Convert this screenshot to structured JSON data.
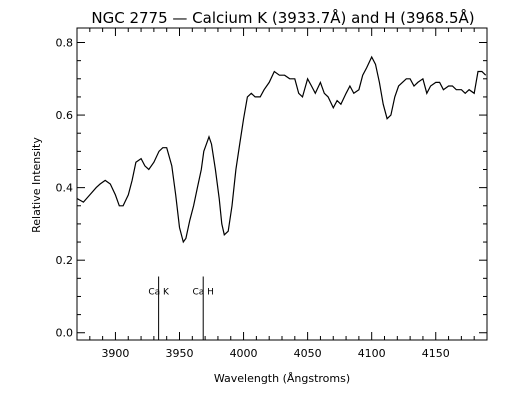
{
  "chart_data": {
    "type": "line",
    "title": "NGC 2775 — Calcium K (3933.7Å) and H (3968.5Å)",
    "xlabel": "Wavelength (Ångstroms)",
    "ylabel": "Relative Intensity",
    "xlim": [
      3870,
      4190
    ],
    "ylim": [
      -0.02,
      0.84
    ],
    "xticks": [
      3900,
      3950,
      4000,
      4050,
      4100,
      4150
    ],
    "yticks": [
      0.0,
      0.2,
      0.4,
      0.6,
      0.8
    ],
    "ytick_labels": [
      "0.0",
      "0.2",
      "0.4",
      "0.6",
      "0.8"
    ],
    "grid": false,
    "series": [
      {
        "x": [
          3870,
          3875,
          3880,
          3885,
          3888,
          3892,
          3896,
          3900,
          3903,
          3906,
          3910,
          3913,
          3916,
          3920,
          3923,
          3926,
          3930,
          3934,
          3937,
          3940,
          3944,
          3947,
          3950,
          3953,
          3955,
          3958,
          3961,
          3964,
          3967,
          3969,
          3971,
          3973,
          3975,
          3978,
          3981,
          3983,
          3985,
          3988,
          3991,
          3994,
          3997,
          4000,
          4003,
          4006,
          4009,
          4013,
          4016,
          4020,
          4024,
          4028,
          4032,
          4036,
          4040,
          4043,
          4046,
          4050,
          4053,
          4056,
          4060,
          4063,
          4066,
          4070,
          4073,
          4076,
          4080,
          4083,
          4086,
          4090,
          4093,
          4096,
          4100,
          4103,
          4106,
          4109,
          4112,
          4115,
          4118,
          4121,
          4124,
          4127,
          4130,
          4133,
          4136,
          4140,
          4143,
          4146,
          4150,
          4153,
          4156,
          4160,
          4163,
          4166,
          4170,
          4173,
          4176,
          4180,
          4183,
          4186,
          4189
        ],
        "y": [
          0.37,
          0.36,
          0.38,
          0.4,
          0.41,
          0.42,
          0.41,
          0.38,
          0.35,
          0.35,
          0.38,
          0.42,
          0.47,
          0.48,
          0.46,
          0.45,
          0.47,
          0.5,
          0.51,
          0.51,
          0.46,
          0.38,
          0.29,
          0.25,
          0.26,
          0.31,
          0.35,
          0.4,
          0.45,
          0.5,
          0.52,
          0.54,
          0.52,
          0.45,
          0.37,
          0.3,
          0.27,
          0.28,
          0.35,
          0.45,
          0.52,
          0.59,
          0.65,
          0.66,
          0.65,
          0.65,
          0.67,
          0.69,
          0.72,
          0.71,
          0.71,
          0.7,
          0.7,
          0.66,
          0.65,
          0.7,
          0.68,
          0.66,
          0.69,
          0.66,
          0.65,
          0.62,
          0.64,
          0.63,
          0.66,
          0.68,
          0.66,
          0.67,
          0.71,
          0.73,
          0.76,
          0.74,
          0.69,
          0.63,
          0.59,
          0.6,
          0.65,
          0.68,
          0.69,
          0.7,
          0.7,
          0.68,
          0.69,
          0.7,
          0.66,
          0.68,
          0.69,
          0.69,
          0.67,
          0.68,
          0.68,
          0.67,
          0.67,
          0.66,
          0.67,
          0.66,
          0.72,
          0.72,
          0.71
        ]
      }
    ],
    "annotations": [
      {
        "label": "Ca K",
        "x": 3933.7,
        "y_top": 0.155
      },
      {
        "label": "Ca H",
        "x": 3968.5,
        "y_top": 0.155
      }
    ]
  }
}
